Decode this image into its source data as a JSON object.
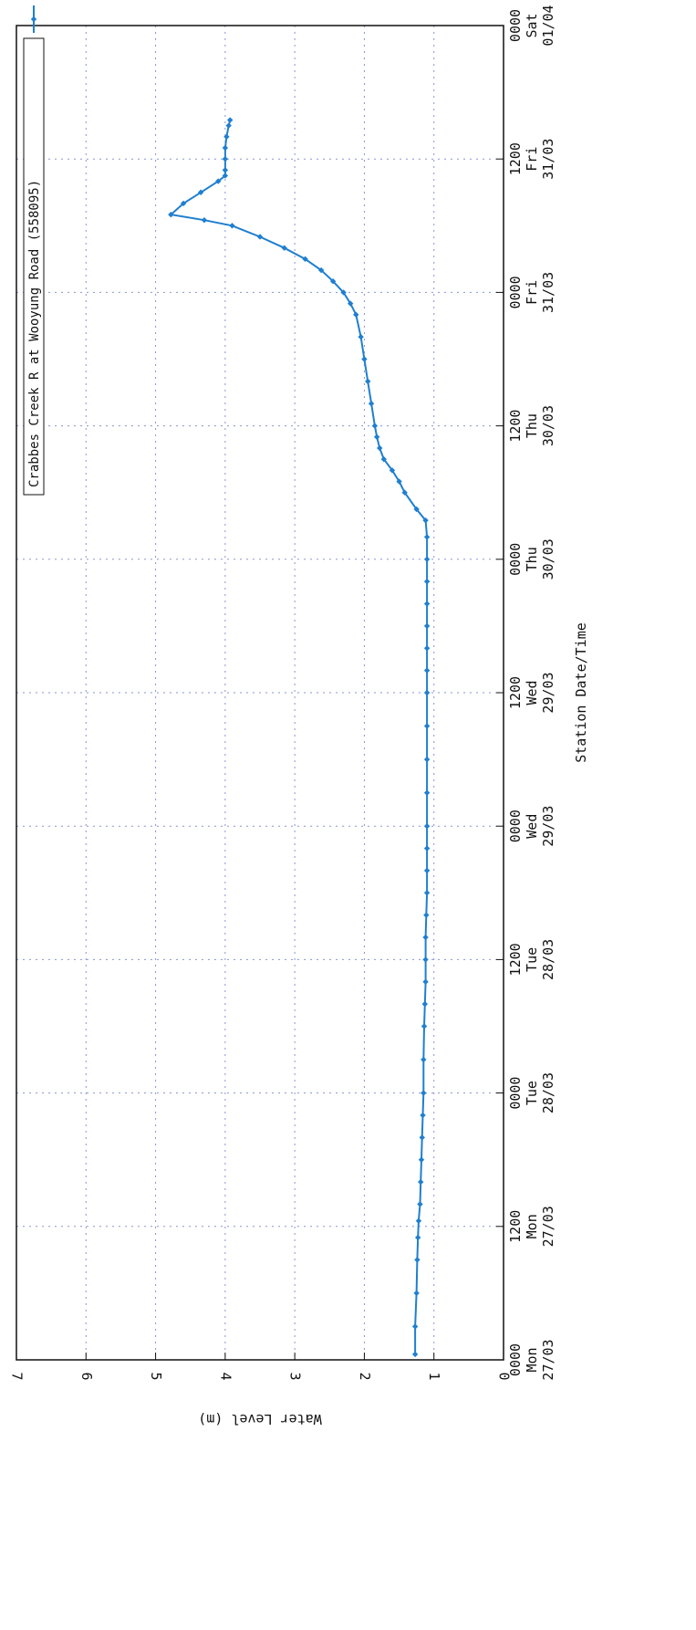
{
  "chart_data": {
    "type": "line",
    "title": "",
    "xlabel": "Station Date/Time",
    "ylabel": "Water Level (m)",
    "ylim": [
      0,
      7
    ],
    "y_ticks": [
      0,
      1,
      2,
      3,
      4,
      5,
      6,
      7
    ],
    "x_range_hours": [
      0,
      120
    ],
    "x_ticks": [
      {
        "hours": 0,
        "l1": "0000",
        "l2": "Mon",
        "l3": "27/03"
      },
      {
        "hours": 12,
        "l1": "1200",
        "l2": "Mon",
        "l3": "27/03"
      },
      {
        "hours": 24,
        "l1": "0000",
        "l2": "Tue",
        "l3": "28/03"
      },
      {
        "hours": 36,
        "l1": "1200",
        "l2": "Tue",
        "l3": "28/03"
      },
      {
        "hours": 48,
        "l1": "0000",
        "l2": "Wed",
        "l3": "29/03"
      },
      {
        "hours": 60,
        "l1": "1200",
        "l2": "Wed",
        "l3": "29/03"
      },
      {
        "hours": 72,
        "l1": "0000",
        "l2": "Thu",
        "l3": "30/03"
      },
      {
        "hours": 84,
        "l1": "1200",
        "l2": "Thu",
        "l3": "30/03"
      },
      {
        "hours": 96,
        "l1": "0000",
        "l2": "Fri",
        "l3": "31/03"
      },
      {
        "hours": 108,
        "l1": "1200",
        "l2": "Fri",
        "l3": "31/03"
      },
      {
        "hours": 120,
        "l1": "0000",
        "l2": "Sat",
        "l3": "01/04"
      }
    ],
    "grid": true,
    "legend_position": "top-right",
    "series": [
      {
        "name": "Crabbes Creek R at Wooyung Road (558095)",
        "color": "#1f7fd0",
        "points": [
          [
            0.5,
            1.27
          ],
          [
            3,
            1.27
          ],
          [
            6,
            1.25
          ],
          [
            9,
            1.24
          ],
          [
            11,
            1.23
          ],
          [
            12.5,
            1.22
          ],
          [
            14,
            1.2
          ],
          [
            16,
            1.19
          ],
          [
            18,
            1.18
          ],
          [
            20,
            1.17
          ],
          [
            22,
            1.16
          ],
          [
            24,
            1.15
          ],
          [
            27,
            1.15
          ],
          [
            30,
            1.14
          ],
          [
            32,
            1.13
          ],
          [
            34,
            1.12
          ],
          [
            36,
            1.12
          ],
          [
            38,
            1.12
          ],
          [
            40,
            1.11
          ],
          [
            42,
            1.1
          ],
          [
            44,
            1.1
          ],
          [
            46,
            1.1
          ],
          [
            48,
            1.1
          ],
          [
            51,
            1.1
          ],
          [
            54,
            1.1
          ],
          [
            57,
            1.1
          ],
          [
            60,
            1.1
          ],
          [
            62,
            1.1
          ],
          [
            64,
            1.1
          ],
          [
            66,
            1.1
          ],
          [
            68,
            1.1
          ],
          [
            70,
            1.1
          ],
          [
            72,
            1.1
          ],
          [
            74,
            1.1
          ],
          [
            75.5,
            1.12
          ],
          [
            76.5,
            1.25
          ],
          [
            78,
            1.42
          ],
          [
            79,
            1.5
          ],
          [
            80,
            1.6
          ],
          [
            81,
            1.72
          ],
          [
            82,
            1.78
          ],
          [
            83,
            1.82
          ],
          [
            84,
            1.85
          ],
          [
            86,
            1.9
          ],
          [
            88,
            1.95
          ],
          [
            90,
            2.0
          ],
          [
            92,
            2.05
          ],
          [
            94,
            2.12
          ],
          [
            95,
            2.2
          ],
          [
            96,
            2.3
          ],
          [
            97,
            2.45
          ],
          [
            98,
            2.62
          ],
          [
            99,
            2.85
          ],
          [
            100,
            3.15
          ],
          [
            101,
            3.5
          ],
          [
            102,
            3.9
          ],
          [
            102.5,
            4.3
          ],
          [
            103,
            4.78
          ],
          [
            104,
            4.6
          ],
          [
            105,
            4.35
          ],
          [
            106,
            4.1
          ],
          [
            106.5,
            4.0
          ],
          [
            107,
            4.0
          ],
          [
            108,
            4.0
          ],
          [
            109,
            4.0
          ],
          [
            110,
            3.98
          ],
          [
            111,
            3.95
          ],
          [
            111.5,
            3.93
          ]
        ]
      }
    ]
  }
}
